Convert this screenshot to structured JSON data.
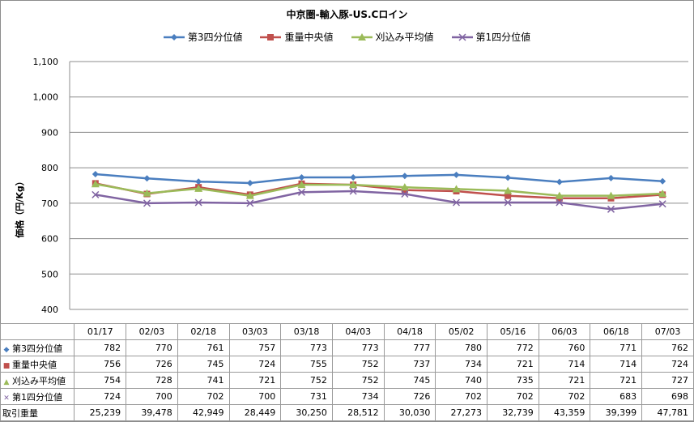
{
  "chart_data": {
    "type": "line",
    "title": "中京圏-輸入豚-US.Cロイン",
    "ylabel": "価格（円/Kg）",
    "xlabel": "",
    "ylim": [
      400,
      1100
    ],
    "yticks": [
      "400",
      "500",
      "600",
      "700",
      "800",
      "900",
      "1,000",
      "1,100"
    ],
    "categories": [
      "01/17",
      "02/03",
      "02/18",
      "03/03",
      "03/18",
      "04/03",
      "04/18",
      "05/02",
      "05/16",
      "06/03",
      "06/18",
      "07/03"
    ],
    "grid": true,
    "legend": "top",
    "series": [
      {
        "name": "第3四分位値",
        "color": "#4a7ebf",
        "marker": "diamond",
        "marker_color": "#4a7ebf",
        "glyph": "◆",
        "values": [
          782,
          770,
          761,
          757,
          773,
          773,
          777,
          780,
          772,
          760,
          771,
          762
        ]
      },
      {
        "name": "重量中央値",
        "color": "#c0504d",
        "marker": "square",
        "marker_color": "#c0504d",
        "glyph": "■",
        "values": [
          756,
          726,
          745,
          724,
          755,
          752,
          737,
          734,
          721,
          714,
          714,
          724
        ]
      },
      {
        "name": "刈込み平均値",
        "color": "#9bbb59",
        "marker": "triangle",
        "marker_color": "#9bbb59",
        "glyph": "▲",
        "values": [
          754,
          728,
          741,
          721,
          752,
          752,
          745,
          740,
          735,
          721,
          721,
          727
        ]
      },
      {
        "name": "第1四分位値",
        "color": "#8064a2",
        "marker": "x",
        "marker_color": "#8064a2",
        "glyph": "✕",
        "values": [
          724,
          700,
          702,
          700,
          731,
          734,
          726,
          702,
          702,
          702,
          683,
          698
        ]
      }
    ],
    "table_extra_row": {
      "name": "取引重量",
      "values": [
        "25,239",
        "39,478",
        "42,949",
        "28,449",
        "30,250",
        "28,512",
        "30,030",
        "27,273",
        "32,739",
        "43,359",
        "39,399",
        "47,781"
      ]
    }
  }
}
